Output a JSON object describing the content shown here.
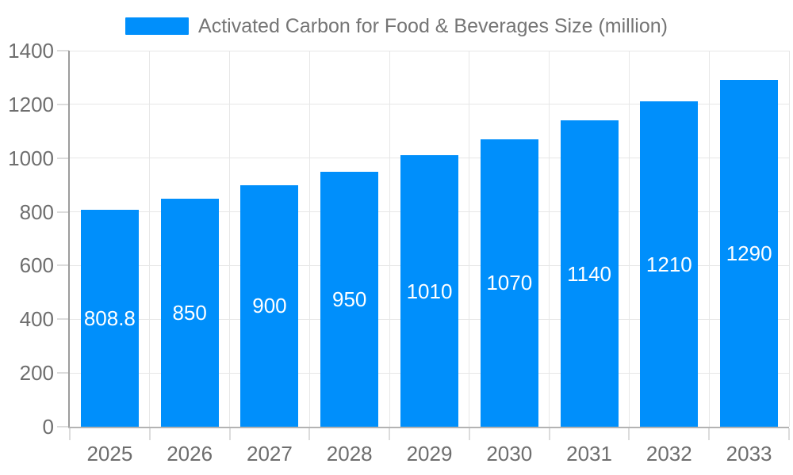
{
  "chart_data": {
    "type": "bar",
    "title": "Activated Carbon for Food & Beverages Size (million)",
    "series": [
      {
        "name": "Activated Carbon for Food & Beverages Size (million)",
        "values": [
          808.8,
          850,
          900,
          950,
          1010,
          1070,
          1140,
          1210,
          1290
        ]
      }
    ],
    "categories": [
      "2025",
      "2026",
      "2027",
      "2028",
      "2029",
      "2030",
      "2031",
      "2032",
      "2033"
    ],
    "value_labels": [
      "808.8",
      "850",
      "900",
      "950",
      "1010",
      "1070",
      "1140",
      "1210",
      "1290"
    ],
    "xlabel": "",
    "ylabel": "",
    "ylim": [
      0,
      1400
    ],
    "yticks": [
      0,
      200,
      400,
      600,
      800,
      1000,
      1200,
      1400
    ],
    "grid": true,
    "legend_position": "top-center",
    "colors": {
      "bar": "#008FFB",
      "grid": "#e7e7e7",
      "y_axis_line": "#9c9c9c",
      "x_axis_line": "#b3b3b3",
      "tick_mark": "#dcdcdc",
      "tick_text": "#6e6e6e",
      "legend_text": "#757575",
      "bar_label_text": "#ffffff",
      "background": "#ffffff"
    }
  }
}
